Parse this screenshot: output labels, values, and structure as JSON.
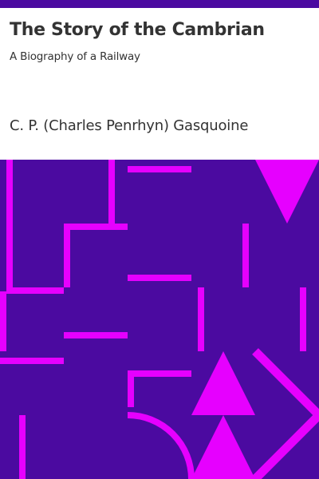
{
  "cover": {
    "title": "The Story of the Cambrian",
    "subtitle": "A Biography of a Railway",
    "author": "C. P. (Charles Penrhyn) Gasquoine"
  },
  "colors": {
    "background": "#ffffff",
    "top_bar": "#4b0aa0",
    "art_background": "#4b0aa0",
    "art_pattern": "#e600ff",
    "text": "#333333"
  }
}
